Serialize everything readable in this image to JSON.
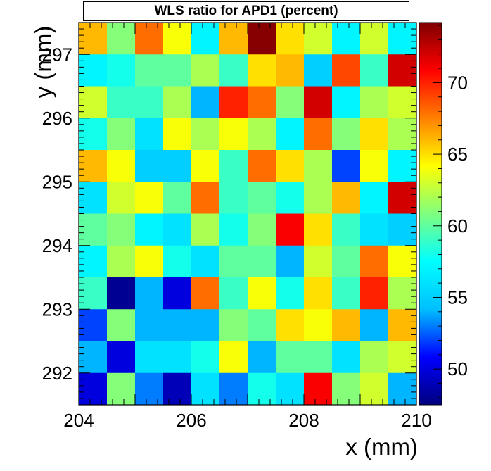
{
  "chart_data": {
    "type": "heatmap",
    "title": "WLS ratio for APD1 (percent)",
    "xlabel": "x (mm)",
    "ylabel": "y (mm)",
    "xlim": [
      204,
      210
    ],
    "ylim": [
      291.5,
      297.5
    ],
    "x_ticks": [
      "204",
      "206",
      "208",
      "210"
    ],
    "y_ticks": [
      "292",
      "293",
      "294",
      "295",
      "296",
      "297"
    ],
    "z_range": [
      47.5,
      74.2
    ],
    "z_ticks": [
      "50",
      "55",
      "60",
      "65",
      "70"
    ],
    "colorscale": [
      "#00007f",
      "#0000ff",
      "#00bfff",
      "#00ffff",
      "#7fff7f",
      "#ffff00",
      "#ff7f00",
      "#ff0000",
      "#7f0000"
    ],
    "x_centers": [
      204.25,
      204.75,
      205.25,
      205.75,
      206.25,
      206.75,
      207.25,
      207.75,
      208.25,
      208.75,
      209.25,
      209.75
    ],
    "y_centers": [
      297.25,
      296.75,
      296.25,
      295.75,
      295.25,
      294.75,
      294.25,
      293.75,
      293.25,
      292.75,
      292.25,
      291.75
    ],
    "values": [
      [
        66,
        61,
        68,
        64,
        57,
        66,
        74,
        65,
        63,
        57,
        63,
        57
      ],
      [
        57,
        58,
        60,
        60,
        62,
        59,
        65,
        66,
        55,
        69,
        59,
        72
      ],
      [
        63,
        59,
        59,
        62,
        54,
        70,
        68,
        61,
        72,
        57,
        62,
        63
      ],
      [
        58,
        61,
        56,
        64,
        62,
        64,
        62,
        57,
        68,
        61,
        65,
        62
      ],
      [
        66,
        64,
        55,
        55,
        64,
        59,
        68,
        65,
        62,
        52,
        64,
        57
      ],
      [
        56,
        63,
        64,
        60,
        68,
        59,
        60,
        58,
        62,
        66,
        57,
        72
      ],
      [
        60,
        61,
        57,
        56,
        62,
        58,
        61,
        71,
        65,
        59,
        56,
        55
      ],
      [
        57,
        62,
        64,
        58,
        56,
        60,
        60,
        54,
        63,
        60,
        68,
        64
      ],
      [
        59,
        48,
        54,
        50,
        68,
        59,
        64,
        58,
        65,
        59,
        70,
        62
      ],
      [
        52,
        61,
        54,
        54,
        54,
        61,
        60,
        65,
        64,
        66,
        54,
        66
      ],
      [
        54,
        50,
        56,
        56,
        58,
        64,
        54,
        60,
        60,
        56,
        62,
        63
      ],
      [
        50,
        61,
        53,
        49,
        56,
        53,
        58,
        56,
        71,
        61,
        63,
        54
      ]
    ]
  }
}
